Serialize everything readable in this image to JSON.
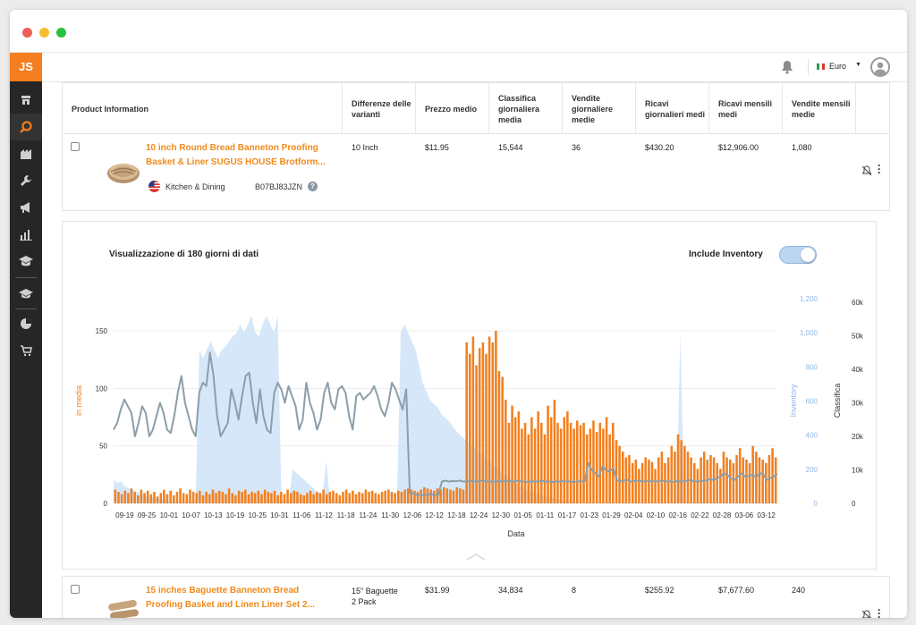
{
  "app": {
    "logo": "JS",
    "currency": "Euro",
    "colors": {
      "accent": "#f47e20",
      "sidebar": "#262626",
      "bars": "#f28020",
      "inventory": "#cfe3f9",
      "rank_line": "#8c9ea9"
    }
  },
  "sidebar": {
    "icons": [
      "store-icon",
      "search-icon",
      "building-icon",
      "wrench-icon",
      "megaphone-icon",
      "bar-chart-icon",
      "graduation-cap-icon",
      "academy-icon",
      "pie-chart-icon",
      "cart-icon"
    ]
  },
  "table": {
    "columns": [
      "Product Information",
      "Differenze delle varianti",
      "Prezzo medio",
      "Classifica giornaliera media",
      "Vendite giornaliere medie",
      "Ricavi giornalieri medi",
      "Ricavi mensili medi",
      "Vendite mensili medie"
    ],
    "rows": [
      {
        "title": "10 inch Round Bread Banneton Proofing Basket & Liner SUGUS HOUSE Brotform...",
        "title_line1": "10 inch Round Bread Banneton Proofing",
        "title_line2": "Basket & Liner SUGUS HOUSE Brotform...",
        "category": "Kitchen & Dining",
        "asin": "B07BJ83JZN",
        "variant": "10 Inch",
        "price": "$11.95",
        "rank": "15,544",
        "daily_sales": "36",
        "daily_revenue": "$430.20",
        "monthly_revenue": "$12,906.00",
        "monthly_sales": "1,080"
      },
      {
        "title_line1": "15 inches Baguette Banneton Bread",
        "title_line2": "Proofing Basket and Linen Liner Set 2...",
        "variant_line1": "15\" Baguette",
        "variant_line2": "2 Pack",
        "price": "$31.99",
        "rank": "34,834",
        "daily_sales": "8",
        "daily_revenue": "$255.92",
        "monthly_revenue": "$7,677.60",
        "monthly_sales": "240"
      }
    ]
  },
  "chart_panel": {
    "heading": "Visualizzazione di 180 giorni di dati",
    "toggle_label": "Include Inventory",
    "toggle_on": true
  },
  "chart_data": {
    "type": "bar",
    "xlabel": "Data",
    "y_left_label": "in media",
    "y_inventory_label": "Inventory",
    "y_rank_label": "Classifica",
    "y_left_ticks": [
      "0",
      "50",
      "100",
      "150"
    ],
    "y_inventory_ticks": [
      "0",
      "200",
      "400",
      "600",
      "800",
      "1,000",
      "1,200"
    ],
    "y_rank_ticks": [
      "0",
      "10k",
      "20k",
      "30k",
      "40k",
      "50k",
      "60k"
    ],
    "ylim_left": [
      0,
      150
    ],
    "ylim_inventory": [
      0,
      1200
    ],
    "ylim_rank": [
      0,
      60000
    ],
    "x_ticks": [
      "09-19",
      "09-25",
      "10-01",
      "10-07",
      "10-13",
      "10-19",
      "10-25",
      "10-31",
      "11-06",
      "11-12",
      "11-18",
      "11-24",
      "11-30",
      "12-06",
      "12-12",
      "12-18",
      "12-24",
      "12-30",
      "01-05",
      "01-11",
      "01-17",
      "01-23",
      "01-29",
      "02-04",
      "02-10",
      "02-16",
      "02-22",
      "02-28",
      "03-06",
      "03-12"
    ],
    "sales_series": {
      "name": "in media",
      "values": [
        12,
        10,
        8,
        11,
        9,
        13,
        10,
        7,
        12,
        9,
        11,
        8,
        10,
        6,
        9,
        12,
        8,
        11,
        7,
        10,
        13,
        9,
        8,
        12,
        10,
        9,
        11,
        7,
        10,
        8,
        12,
        9,
        11,
        10,
        8,
        13,
        9,
        7,
        11,
        10,
        12,
        8,
        10,
        9,
        11,
        8,
        12,
        10,
        9,
        11,
        7,
        10,
        8,
        12,
        9,
        11,
        10,
        8,
        7,
        9,
        11,
        8,
        10,
        9,
        12,
        8,
        10,
        11,
        9,
        7,
        10,
        12,
        9,
        11,
        8,
        10,
        9,
        12,
        10,
        11,
        9,
        8,
        10,
        11,
        12,
        10,
        9,
        11,
        10,
        12,
        13,
        12,
        11,
        10,
        12,
        14,
        13,
        12,
        11,
        13,
        12,
        14,
        13,
        12,
        11,
        14,
        13,
        12,
        140,
        130,
        145,
        120,
        135,
        140,
        130,
        145,
        140,
        150,
        115,
        110,
        90,
        70,
        85,
        75,
        80,
        65,
        70,
        60,
        75,
        65,
        80,
        70,
        60,
        85,
        75,
        90,
        70,
        65,
        75,
        80,
        70,
        65,
        72,
        68,
        70,
        60,
        65,
        72,
        62,
        70,
        65,
        75,
        60,
        70,
        55,
        50,
        45,
        40,
        42,
        35,
        38,
        30,
        35,
        40,
        38,
        36,
        30,
        40,
        45,
        35,
        40,
        50,
        45,
        60,
        55,
        50,
        45,
        40,
        35,
        30,
        40,
        45,
        38,
        42,
        40,
        35,
        30,
        45,
        40,
        38,
        35,
        42,
        48,
        40,
        38,
        35,
        50,
        45,
        40,
        38,
        35,
        42,
        48,
        40
      ]
    },
    "inventory_series": {
      "name": "Inventory",
      "values": [
        140,
        120,
        130,
        100,
        90,
        80,
        70,
        60,
        50,
        40,
        35,
        30,
        28,
        25,
        20,
        18,
        15,
        12,
        10,
        8,
        10,
        12,
        15,
        900,
        850,
        900,
        950,
        900,
        850,
        900,
        920,
        950,
        980,
        1000,
        1050,
        1000,
        1050,
        1100,
        1000,
        980,
        1050,
        1100,
        1050,
        1000,
        1100,
        20,
        15,
        10,
        200,
        180,
        160,
        140,
        120,
        100,
        80,
        60,
        40,
        250,
        30,
        20,
        15,
        10,
        8,
        5,
        5,
        5,
        5,
        5,
        5,
        5,
        5,
        5,
        5,
        5,
        5,
        5,
        5,
        1000,
        1050,
        1000,
        950,
        900,
        800,
        700,
        650,
        600,
        580,
        560,
        520,
        500,
        480,
        450,
        420,
        400,
        380,
        360,
        340,
        320,
        300,
        280,
        260,
        240,
        220,
        200,
        180,
        160,
        150,
        140,
        120,
        100,
        90,
        80,
        70,
        60,
        50,
        45,
        40,
        35,
        30,
        25,
        20,
        18,
        15,
        12,
        10,
        8,
        6,
        5,
        5,
        5,
        5,
        5,
        5,
        5,
        5,
        5,
        5,
        5,
        5,
        5,
        5,
        5,
        5,
        5,
        5,
        5,
        5,
        5,
        5,
        5,
        5,
        5,
        1000,
        5,
        5,
        5,
        5,
        5,
        5,
        5,
        5,
        5,
        5,
        5,
        5,
        5,
        5,
        5,
        5,
        5,
        5,
        5,
        5,
        5,
        5,
        5,
        5,
        5,
        5
      ]
    },
    "rank_series": {
      "name": "Classifica",
      "values": [
        22000,
        24000,
        28000,
        31000,
        29000,
        27000,
        20000,
        24000,
        29000,
        27000,
        20000,
        22000,
        26000,
        30000,
        27000,
        22000,
        21000,
        26000,
        33000,
        38000,
        30000,
        26000,
        22000,
        20000,
        33000,
        36000,
        35000,
        45000,
        38000,
        26000,
        20000,
        22000,
        24000,
        34000,
        30000,
        25000,
        32000,
        38000,
        39000,
        30000,
        24000,
        34000,
        26000,
        22000,
        21000,
        33000,
        36000,
        34000,
        30000,
        35000,
        32000,
        29000,
        22000,
        25000,
        36000,
        30000,
        27000,
        22000,
        25000,
        33000,
        36000,
        30000,
        28000,
        34000,
        35000,
        33000,
        26000,
        22000,
        32000,
        33000,
        31000,
        32000,
        33000,
        35000,
        32000,
        28000,
        26000,
        30000,
        36000,
        34000,
        31000,
        28000,
        34000,
        3000,
        3000,
        2500,
        2500,
        2500,
        2600,
        2700,
        2500,
        2600,
        6500,
        6800,
        6500,
        6700,
        6600,
        6800,
        6500,
        6600,
        6700,
        6500,
        6600,
        6800,
        6700,
        6500,
        6600,
        6400,
        6700,
        6500,
        6600,
        6700,
        6500,
        6800,
        6600,
        6500,
        6400,
        6500,
        6600,
        6500,
        6700,
        6600,
        6500,
        6400,
        6600,
        6500,
        6700,
        6500,
        6600,
        6400,
        6500,
        6600,
        6500,
        12000,
        10000,
        9000,
        8000,
        11000,
        10000,
        9500,
        10500,
        7000,
        6500,
        6800,
        7000,
        6500,
        6700,
        6800,
        6600,
        6500,
        6700,
        6600,
        6500,
        6800,
        6700,
        6500,
        6600,
        6400,
        6700,
        6500,
        6600,
        7000,
        6800,
        6500,
        6600,
        6700,
        6800,
        7200,
        7000,
        7500,
        8000,
        9000,
        8500,
        7500,
        7000,
        8000,
        9000,
        8000,
        8200,
        8500,
        7800,
        9000,
        8800,
        7000,
        7500,
        8000,
        8800
      ]
    }
  }
}
